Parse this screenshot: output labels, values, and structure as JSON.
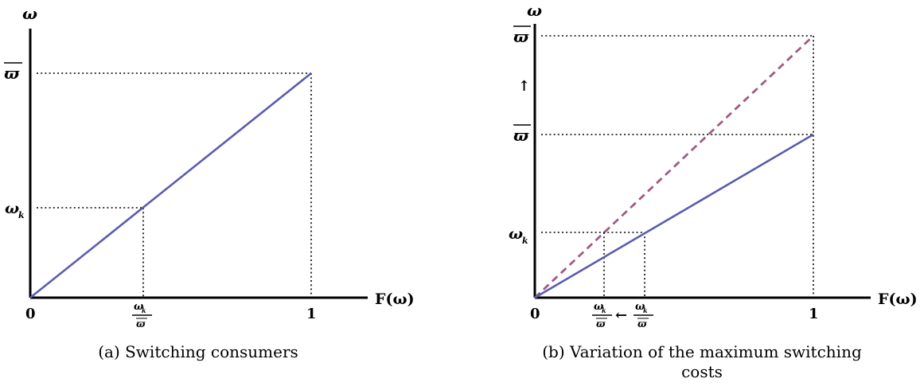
{
  "panel_a": {
    "y_axis_label": "ω",
    "x_axis_label": "F(ω)",
    "origin_label": "0",
    "x_tick_1": "1",
    "y_label_max": "ϖ",
    "y_label_k": "ω",
    "y_label_k_sub": "k",
    "frac_numerator": "ω",
    "frac_numerator_sub": "k",
    "frac_denominator": "ϖ",
    "caption": "(a) Switching consumers"
  },
  "panel_b": {
    "y_axis_label": "ω",
    "x_axis_label": "F(ω)",
    "origin_label": "0",
    "x_tick_1": "1",
    "y_label_max_high": "ϖ",
    "y_label_max": "ϖ",
    "y_label_k": "ω",
    "y_label_k_sub": "k",
    "up_arrow": "↑",
    "left_arrow": "←",
    "frac_left_numerator": "ω",
    "frac_left_numerator_sub": "k",
    "frac_left_denominator": "ϖ",
    "frac_right_numerator": "ω",
    "frac_right_numerator_sub": "k",
    "frac_right_denominator": "ϖ",
    "caption_line1": "(b) Variation of the maximum switching",
    "caption_line2": "costs"
  },
  "colors": {
    "solid_line": "#5b5bb0",
    "dashed_line": "#a05b82",
    "axes": "#000000"
  }
}
